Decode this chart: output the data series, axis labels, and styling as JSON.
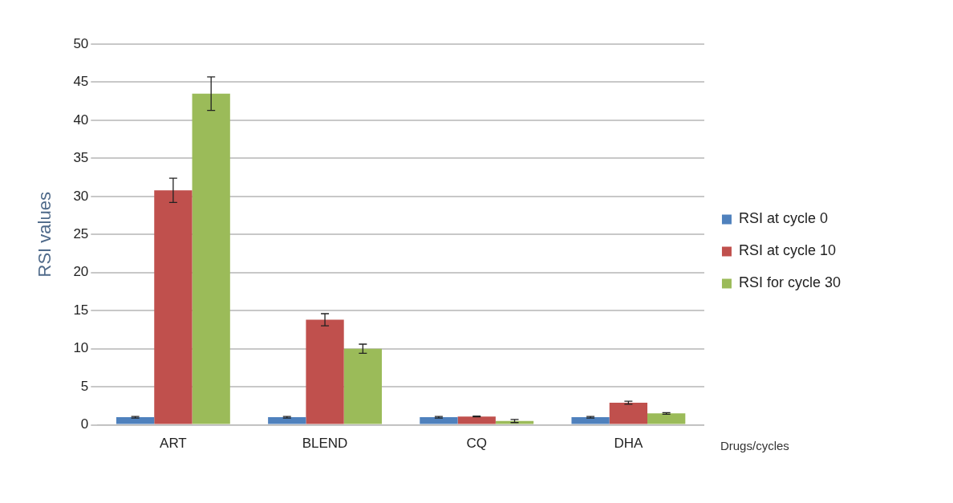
{
  "chart_data": {
    "type": "bar",
    "xlabel": "Drugs/cycles",
    "ylabel": "RSI values",
    "categories": [
      "ART",
      "BLEND",
      "CQ",
      "DHA"
    ],
    "series": [
      {
        "name": "RSI at cycle 0",
        "color": "#4f81bd",
        "values": [
          1,
          1,
          1,
          1
        ],
        "errors": [
          0.1,
          0.1,
          0.1,
          0.1
        ]
      },
      {
        "name": "RSI at cycle 10",
        "color": "#c0504d",
        "values": [
          30.8,
          13.8,
          1.1,
          2.9
        ],
        "errors": [
          1.6,
          0.8,
          0.05,
          0.2
        ]
      },
      {
        "name": "RSI for cycle 30",
        "color": "#9bbb59",
        "values": [
          43.5,
          10,
          0.5,
          1.5
        ],
        "errors": [
          2.2,
          0.6,
          0.2,
          0.1
        ]
      }
    ],
    "ylim": [
      0,
      50
    ],
    "yticks": [
      0,
      5,
      10,
      15,
      20,
      25,
      30,
      35,
      40,
      45,
      50
    ],
    "grid": "y",
    "legend": "right"
  }
}
